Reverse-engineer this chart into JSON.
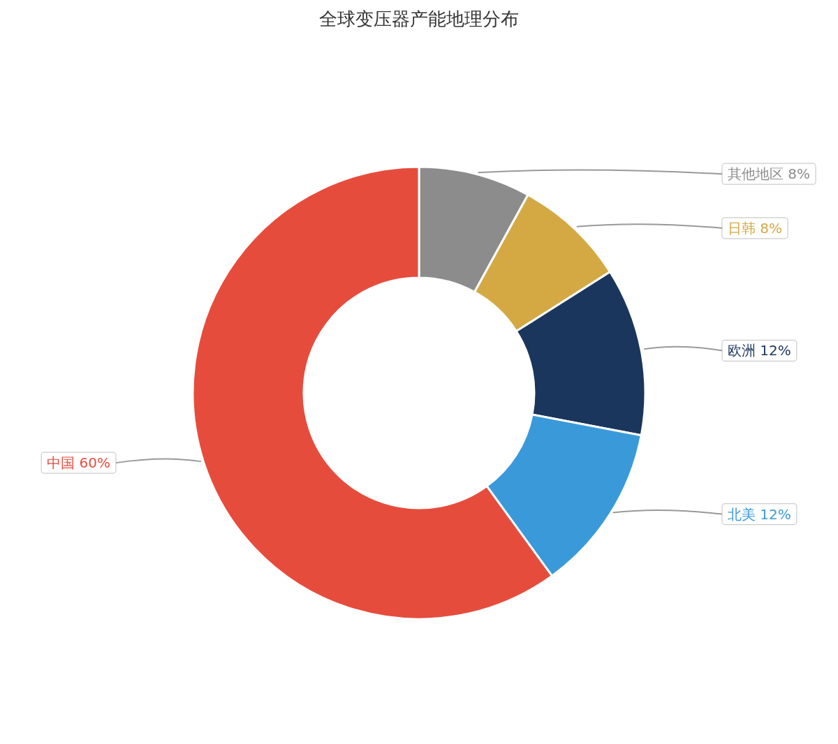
{
  "chart_data": {
    "type": "donut",
    "title": "全球变压器产能地理分布",
    "categories": [
      "其他地区",
      "日韩",
      "欧洲",
      "北美",
      "中国"
    ],
    "values": [
      8,
      8,
      12,
      12,
      60
    ],
    "colors": [
      "#8c8c8c",
      "#d4a944",
      "#1b365d",
      "#3a9ad9",
      "#e64c3c"
    ],
    "value_labels": [
      "8%",
      "8%",
      "12%",
      "12%",
      "60%"
    ]
  }
}
